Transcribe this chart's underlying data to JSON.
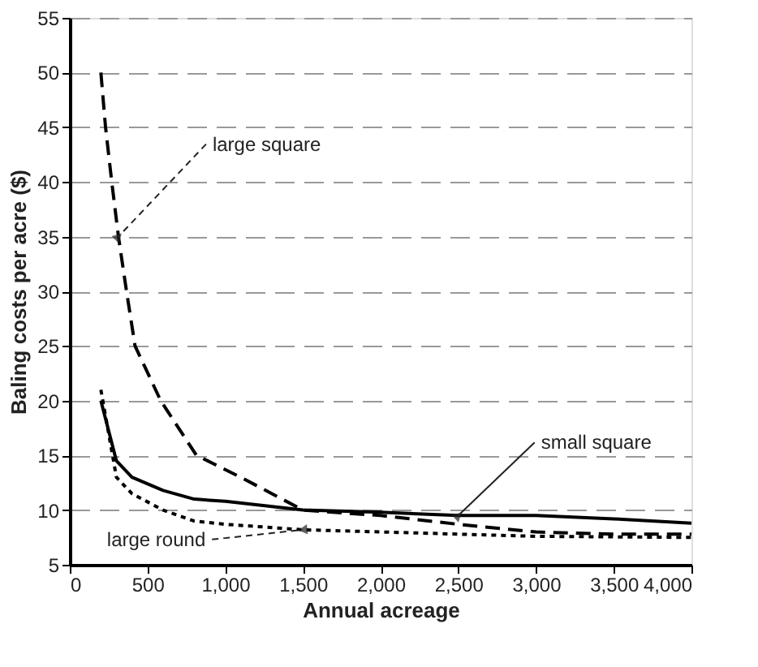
{
  "chart_data": {
    "type": "line",
    "xlabel": "Annual acreage",
    "ylabel": "Baling costs per acre ($)",
    "xlim": [
      0,
      4000
    ],
    "xticks": [
      0,
      500,
      {
        "value": 1000,
        "label": "1,000"
      },
      {
        "value": 1500,
        "label": "1,500"
      },
      {
        "value": 2000,
        "label": "2,000"
      },
      {
        "value": 2500,
        "label": "2,500"
      },
      {
        "value": 3000,
        "label": "3,000"
      },
      {
        "value": 3500,
        "label": "3,500"
      },
      {
        "value": 4000,
        "label": "4,000"
      }
    ],
    "ylim": [
      5,
      55
    ],
    "yticks": [
      5,
      10,
      15,
      20,
      25,
      30,
      35,
      40,
      45,
      50,
      55
    ],
    "grid": "y",
    "marker": "none",
    "series": [
      {
        "name": "large square",
        "color": "#000000",
        "line_style": "dashed",
        "x": [
          200,
          230,
          270,
          313,
          365,
          420,
          585,
          815,
          1100,
          1500,
          2000,
          2500,
          3000,
          3500,
          4000
        ],
        "values": [
          50,
          45,
          40,
          35,
          30,
          25,
          20,
          15,
          13,
          10,
          9.5,
          8.7,
          8,
          7.8,
          7.8
        ]
      },
      {
        "name": "small square",
        "color": "#000000",
        "line_style": "solid",
        "x": [
          200,
          300,
          400,
          600,
          800,
          1000,
          1500,
          2000,
          2500,
          3000,
          3500,
          4000
        ],
        "values": [
          20,
          14.5,
          13,
          11.8,
          11,
          10.8,
          10,
          9.8,
          9.5,
          9.5,
          9.2,
          8.8
        ]
      },
      {
        "name": "large round",
        "color": "#000000",
        "line_style": "dotted",
        "x": [
          200,
          300,
          400,
          600,
          800,
          1000,
          1500,
          2000,
          2500,
          3000,
          4000
        ],
        "values": [
          21,
          13,
          11.5,
          10,
          9,
          8.7,
          8.2,
          8,
          7.8,
          7.6,
          7.5
        ]
      }
    ]
  }
}
